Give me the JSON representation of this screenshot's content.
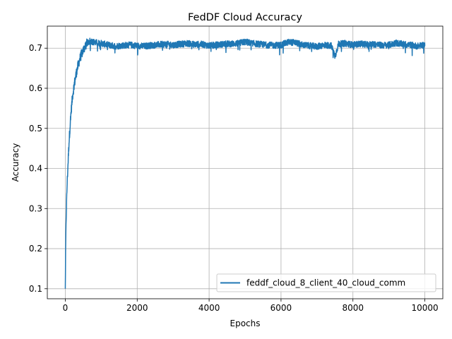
{
  "chart_data": {
    "type": "line",
    "title": "FedDF Cloud Accuracy",
    "xlabel": "Epochs",
    "ylabel": "Accuracy",
    "xlim": [
      -500,
      10500
    ],
    "ylim": [
      0.075,
      0.755
    ],
    "xticks": [
      0,
      2000,
      4000,
      6000,
      8000,
      10000
    ],
    "xtick_labels": [
      "0",
      "2000",
      "4000",
      "6000",
      "8000",
      "10000"
    ],
    "yticks": [
      0.1,
      0.2,
      0.3,
      0.4,
      0.5,
      0.6,
      0.7
    ],
    "ytick_labels": [
      "0.1",
      "0.2",
      "0.3",
      "0.4",
      "0.5",
      "0.6",
      "0.7"
    ],
    "grid": true,
    "legend_position": "lower-right",
    "series": [
      {
        "name": "feddf_cloud_8_client_40_cloud_comm",
        "color": "#1f77b4",
        "x": [
          0,
          10,
          25,
          50,
          75,
          100,
          150,
          200,
          250,
          300,
          350,
          400,
          450,
          500,
          550,
          600,
          700,
          800,
          900,
          1000,
          1200,
          1400,
          1600,
          1800,
          2000,
          2200,
          2400,
          2600,
          2800,
          3000,
          3200,
          3400,
          3600,
          3800,
          4000,
          4200,
          4400,
          4600,
          4800,
          5000,
          5200,
          5400,
          5600,
          5800,
          6000,
          6200,
          6400,
          6600,
          6800,
          7000,
          7200,
          7400,
          7500,
          7600,
          7800,
          8000,
          8200,
          8400,
          8600,
          8800,
          9000,
          9200,
          9400,
          9600,
          9800,
          10000
        ],
        "values": [
          0.1,
          0.2,
          0.28,
          0.36,
          0.41,
          0.46,
          0.53,
          0.58,
          0.61,
          0.635,
          0.655,
          0.672,
          0.685,
          0.695,
          0.705,
          0.712,
          0.718,
          0.715,
          0.713,
          0.712,
          0.708,
          0.705,
          0.707,
          0.708,
          0.706,
          0.705,
          0.707,
          0.709,
          0.71,
          0.708,
          0.71,
          0.712,
          0.709,
          0.71,
          0.706,
          0.708,
          0.71,
          0.711,
          0.712,
          0.716,
          0.712,
          0.71,
          0.708,
          0.707,
          0.708,
          0.715,
          0.714,
          0.708,
          0.706,
          0.704,
          0.708,
          0.706,
          0.68,
          0.71,
          0.712,
          0.708,
          0.711,
          0.709,
          0.71,
          0.707,
          0.708,
          0.713,
          0.71,
          0.708,
          0.705,
          0.709
        ]
      }
    ]
  }
}
